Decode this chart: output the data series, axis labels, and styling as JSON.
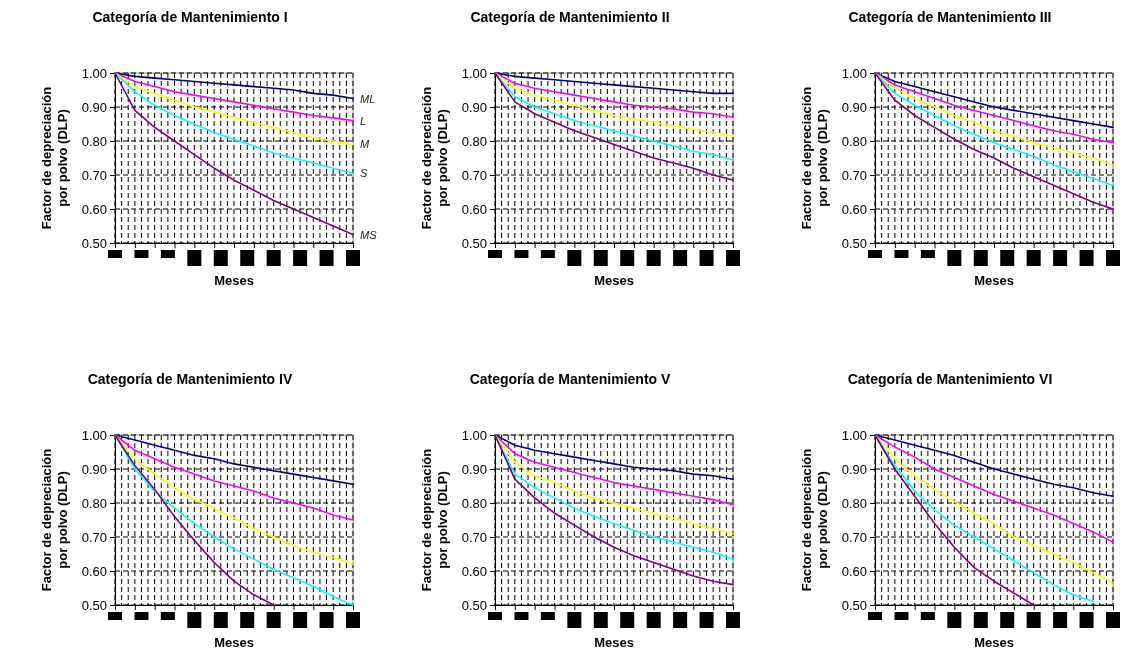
{
  "chart_data": [
    {
      "type": "line",
      "title": "Categoría de Mantenimiento I",
      "xlabel": "Meses",
      "ylabel": "Factor de depreciación por polvo (DLP)",
      "categories": [
        null,
        null,
        null,
        null,
        null,
        null,
        null,
        null,
        null,
        null,
        null,
        null,
        null
      ],
      "ylim": [
        0.5,
        1.0
      ],
      "yticks": [
        {
          "value": 0.5,
          "label": "0.50"
        },
        {
          "value": 0.6,
          "label": "0.60"
        },
        {
          "value": 0.7,
          "label": "0.70"
        },
        {
          "value": 0.8,
          "label": "0.80"
        },
        {
          "value": 0.9,
          "label": "0.90"
        },
        {
          "value": 1.0,
          "label": "1.00"
        }
      ],
      "tick_labels": "y",
      "grid": true,
      "series": [
        {
          "name": "ML",
          "color": "#000080",
          "values": [
            1,
            0.99,
            0.985,
            0.98,
            0.975,
            0.97,
            0.965,
            0.96,
            0.955,
            0.95,
            0.94,
            0.935,
            0.925
          ]
        },
        {
          "name": "L",
          "color": "#ff00ff",
          "values": [
            1,
            0.975,
            0.96,
            0.945,
            0.935,
            0.925,
            0.915,
            0.905,
            0.895,
            0.885,
            0.875,
            0.868,
            0.86
          ]
        },
        {
          "name": "M",
          "color": "#ffff00",
          "values": [
            1,
            0.96,
            0.94,
            0.92,
            0.9,
            0.885,
            0.87,
            0.855,
            0.84,
            0.825,
            0.81,
            0.8,
            0.79
          ]
        },
        {
          "name": "S",
          "color": "#00ffff",
          "values": [
            1,
            0.945,
            0.905,
            0.875,
            0.85,
            0.825,
            0.805,
            0.785,
            0.765,
            0.75,
            0.735,
            0.72,
            0.705
          ]
        },
        {
          "name": "MS",
          "color": "#800080",
          "values": [
            1,
            0.89,
            0.84,
            0.8,
            0.76,
            0.72,
            0.685,
            0.655,
            0.625,
            0.6,
            0.575,
            0.55,
            0.525
          ]
        }
      ]
    },
    {
      "type": "line",
      "title": "Categoría de Mantenimiento II",
      "xlabel": "Meses",
      "ylabel": "Factor de depreciación por polvo (DLP)",
      "categories": [
        null,
        null,
        null,
        null,
        null,
        null,
        null,
        null,
        null,
        null,
        null,
        null,
        null
      ],
      "ylim": [
        0.5,
        1.0
      ],
      "yticks": [
        {
          "value": 0.5,
          "label": "0.50"
        },
        {
          "value": 0.6,
          "label": "0.60"
        },
        {
          "value": 0.7,
          "label": "0.70"
        },
        {
          "value": 0.8,
          "label": "0.80"
        },
        {
          "value": 0.9,
          "label": "0.90"
        },
        {
          "value": 1.0,
          "label": "1.00"
        }
      ],
      "tick_labels": "y",
      "grid": true,
      "series": [
        {
          "color": "#000080",
          "values": [
            1,
            0.99,
            0.985,
            0.98,
            0.975,
            0.97,
            0.965,
            0.96,
            0.955,
            0.95,
            0.945,
            0.94,
            0.94
          ]
        },
        {
          "color": "#ff00ff",
          "values": [
            1,
            0.97,
            0.955,
            0.945,
            0.935,
            0.925,
            0.915,
            0.905,
            0.9,
            0.895,
            0.885,
            0.88,
            0.87
          ]
        },
        {
          "color": "#ffff00",
          "values": [
            1,
            0.955,
            0.935,
            0.92,
            0.905,
            0.89,
            0.875,
            0.865,
            0.855,
            0.845,
            0.835,
            0.825,
            0.815
          ]
        },
        {
          "color": "#00ffff",
          "values": [
            1,
            0.93,
            0.9,
            0.88,
            0.86,
            0.845,
            0.83,
            0.815,
            0.8,
            0.785,
            0.77,
            0.76,
            0.745
          ]
        },
        {
          "color": "#800080",
          "values": [
            1,
            0.915,
            0.88,
            0.855,
            0.83,
            0.81,
            0.79,
            0.77,
            0.75,
            0.735,
            0.72,
            0.7,
            0.685
          ]
        }
      ]
    },
    {
      "type": "line",
      "title": "Categoría de Mantenimiento III",
      "xlabel": "Meses",
      "ylabel": "Factor de depreciación por polvo (DLP)",
      "categories": [
        null,
        null,
        null,
        null,
        null,
        null,
        null,
        null,
        null,
        null,
        null,
        null,
        null
      ],
      "ylim": [
        0.5,
        1.0
      ],
      "yticks": [
        {
          "value": 0.5,
          "label": "0.50"
        },
        {
          "value": 0.6,
          "label": "0.60"
        },
        {
          "value": 0.7,
          "label": "0.70"
        },
        {
          "value": 0.8,
          "label": "0.80"
        },
        {
          "value": 0.9,
          "label": "0.90"
        },
        {
          "value": 1.0,
          "label": "1.00"
        }
      ],
      "tick_labels": "y",
      "grid": true,
      "series": [
        {
          "color": "#000080",
          "values": [
            1,
            0.975,
            0.96,
            0.945,
            0.93,
            0.915,
            0.9,
            0.89,
            0.88,
            0.87,
            0.86,
            0.85,
            0.84
          ]
        },
        {
          "color": "#ff00ff",
          "values": [
            1,
            0.965,
            0.945,
            0.925,
            0.905,
            0.89,
            0.875,
            0.86,
            0.845,
            0.83,
            0.82,
            0.805,
            0.795
          ]
        },
        {
          "color": "#ffff00",
          "values": [
            1,
            0.955,
            0.925,
            0.9,
            0.875,
            0.855,
            0.83,
            0.815,
            0.795,
            0.78,
            0.765,
            0.75,
            0.73
          ]
        },
        {
          "color": "#00ffff",
          "values": [
            1,
            0.94,
            0.905,
            0.875,
            0.845,
            0.82,
            0.795,
            0.775,
            0.755,
            0.73,
            0.71,
            0.69,
            0.67
          ]
        },
        {
          "color": "#800080",
          "values": [
            1,
            0.92,
            0.875,
            0.84,
            0.805,
            0.775,
            0.75,
            0.72,
            0.695,
            0.67,
            0.645,
            0.62,
            0.6
          ]
        }
      ]
    },
    {
      "type": "line",
      "title": "Categoría de Mantenimiento IV",
      "xlabel": "Meses",
      "ylabel": "Factor de depreciación por polvo (DLP)",
      "categories": [
        null,
        null,
        null,
        null,
        null,
        null,
        null,
        null,
        null,
        null,
        null,
        null,
        null
      ],
      "ylim": [
        0.5,
        1.0
      ],
      "yticks": [
        {
          "value": 0.5,
          "label": "0.50"
        },
        {
          "value": 0.6,
          "label": "0.60"
        },
        {
          "value": 0.7,
          "label": "0.70"
        },
        {
          "value": 0.8,
          "label": "0.80"
        },
        {
          "value": 0.9,
          "label": "0.90"
        },
        {
          "value": 1.0,
          "label": "1.00"
        }
      ],
      "tick_labels": "y",
      "grid": true,
      "series": [
        {
          "color": "#000080",
          "values": [
            1,
            0.985,
            0.97,
            0.955,
            0.94,
            0.93,
            0.915,
            0.905,
            0.895,
            0.885,
            0.875,
            0.865,
            0.855
          ]
        },
        {
          "color": "#ff00ff",
          "values": [
            1,
            0.955,
            0.93,
            0.905,
            0.885,
            0.865,
            0.85,
            0.835,
            0.815,
            0.8,
            0.785,
            0.765,
            0.75
          ]
        },
        {
          "color": "#ffff00",
          "values": [
            1,
            0.93,
            0.885,
            0.845,
            0.81,
            0.785,
            0.755,
            0.725,
            0.7,
            0.675,
            0.655,
            0.64,
            0.62
          ]
        },
        {
          "color": "#00ffff",
          "values": [
            1,
            0.9,
            0.835,
            0.785,
            0.74,
            0.7,
            0.665,
            0.635,
            0.605,
            0.58,
            0.555,
            0.525,
            0.5
          ]
        },
        {
          "color": "#800080",
          "values": [
            1,
            0.91,
            0.84,
            0.76,
            0.69,
            0.625,
            0.57,
            0.53,
            0.5,
            null,
            null,
            null,
            null
          ]
        }
      ]
    },
    {
      "type": "line",
      "title": "Categoría de Mantenimiento V",
      "xlabel": "Meses",
      "ylabel": "Factor de depreciación por polvo (DLP)",
      "categories": [
        null,
        null,
        null,
        null,
        null,
        null,
        null,
        null,
        null,
        null,
        null,
        null,
        null
      ],
      "ylim": [
        0.5,
        1.0
      ],
      "yticks": [
        {
          "value": 0.5,
          "label": "0.50"
        },
        {
          "value": 0.6,
          "label": "0.60"
        },
        {
          "value": 0.7,
          "label": "0.70"
        },
        {
          "value": 0.8,
          "label": "0.80"
        },
        {
          "value": 0.9,
          "label": "0.90"
        },
        {
          "value": 1.0,
          "label": "1.00"
        }
      ],
      "tick_labels": "y",
      "grid": true,
      "series": [
        {
          "color": "#000080",
          "values": [
            1,
            0.97,
            0.955,
            0.945,
            0.935,
            0.925,
            0.915,
            0.905,
            0.9,
            0.895,
            0.885,
            0.88,
            0.87
          ]
        },
        {
          "color": "#ff00ff",
          "values": [
            1,
            0.945,
            0.92,
            0.905,
            0.89,
            0.875,
            0.86,
            0.85,
            0.84,
            0.83,
            0.82,
            0.81,
            0.795
          ]
        },
        {
          "color": "#ffff00",
          "values": [
            1,
            0.92,
            0.88,
            0.86,
            0.835,
            0.815,
            0.8,
            0.785,
            0.77,
            0.755,
            0.74,
            0.725,
            0.71
          ]
        },
        {
          "color": "#00ffff",
          "values": [
            1,
            0.885,
            0.845,
            0.815,
            0.785,
            0.76,
            0.74,
            0.72,
            0.7,
            0.685,
            0.67,
            0.655,
            0.635
          ]
        },
        {
          "color": "#800080",
          "values": [
            1,
            0.87,
            0.815,
            0.77,
            0.735,
            0.7,
            0.67,
            0.645,
            0.625,
            0.605,
            0.585,
            0.57,
            0.56
          ]
        }
      ]
    },
    {
      "type": "line",
      "title": "Categoría de Mantenimiento VI",
      "xlabel": "Meses",
      "ylabel": "Factor de depreciación por polvo (DLP)",
      "categories": [
        null,
        null,
        null,
        null,
        null,
        null,
        null,
        null,
        null,
        null,
        null,
        null,
        null
      ],
      "ylim": [
        0.5,
        1.0
      ],
      "yticks": [
        {
          "value": 0.5,
          "label": "0.50"
        },
        {
          "value": 0.6,
          "label": "0.60"
        },
        {
          "value": 0.7,
          "label": "0.70"
        },
        {
          "value": 0.8,
          "label": "0.80"
        },
        {
          "value": 0.9,
          "label": "0.90"
        },
        {
          "value": 1.0,
          "label": "1.00"
        }
      ],
      "tick_labels": "y",
      "grid": true,
      "series": [
        {
          "color": "#000080",
          "values": [
            1,
            0.985,
            0.97,
            0.955,
            0.94,
            0.92,
            0.9,
            0.885,
            0.87,
            0.855,
            0.845,
            0.83,
            0.82
          ]
        },
        {
          "color": "#ff00ff",
          "values": [
            1,
            0.965,
            0.935,
            0.9,
            0.875,
            0.85,
            0.825,
            0.805,
            0.785,
            0.765,
            0.74,
            0.715,
            0.685
          ]
        },
        {
          "color": "#ffff00",
          "values": [
            1,
            0.93,
            0.88,
            0.84,
            0.805,
            0.77,
            0.74,
            0.7,
            0.675,
            0.65,
            0.625,
            0.595,
            0.565
          ]
        },
        {
          "color": "#00ffff",
          "values": [
            1,
            0.91,
            0.835,
            0.78,
            0.735,
            0.7,
            0.665,
            0.63,
            0.595,
            0.56,
            0.53,
            0.51,
            null
          ]
        },
        {
          "color": "#800080",
          "values": [
            1,
            0.9,
            0.82,
            0.74,
            0.67,
            0.61,
            0.57,
            0.535,
            0.5,
            null,
            null,
            null,
            null
          ]
        }
      ]
    }
  ]
}
